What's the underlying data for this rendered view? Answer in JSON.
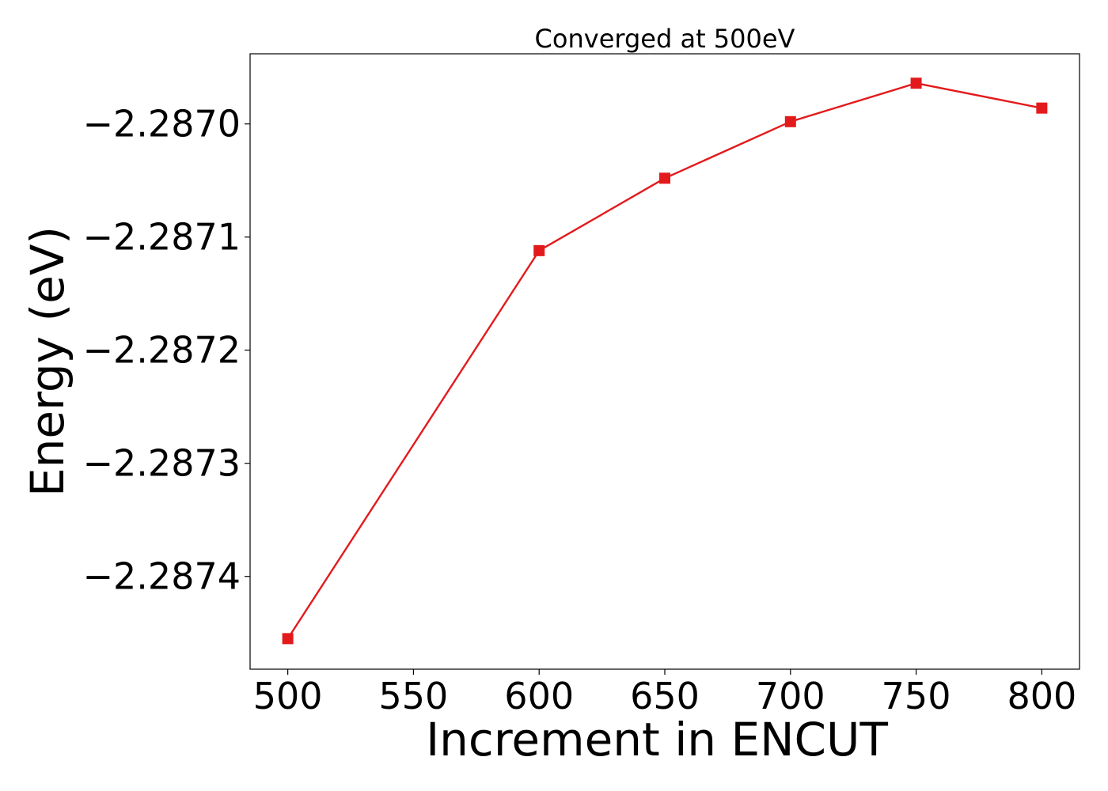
{
  "chart_data": {
    "type": "line",
    "title": "Converged at 500eV",
    "xlabel": "Increment in ENCUT",
    "ylabel": "Energy (eV)",
    "x": [
      500,
      600,
      650,
      700,
      750,
      800
    ],
    "series": [
      {
        "values": [
          -2.287455,
          -2.287112,
          -2.287048,
          -2.286998,
          -2.286964,
          -2.286986
        ],
        "color": "#e31a1c",
        "marker": "square"
      }
    ],
    "xlim": [
      485,
      815
    ],
    "ylim": [
      -2.287482,
      -2.286938
    ],
    "xticks": [
      500,
      550,
      600,
      650,
      700,
      750,
      800
    ],
    "xtick_labels": [
      "500",
      "550",
      "600",
      "650",
      "700",
      "750",
      "800"
    ],
    "yticks": [
      -2.2874,
      -2.2873,
      -2.2872,
      -2.2871,
      -2.287
    ],
    "ytick_labels": [
      "−2.2874",
      "−2.2873",
      "−2.2872",
      "−2.2871",
      "−2.2870"
    ],
    "grid": false,
    "legend": false
  }
}
